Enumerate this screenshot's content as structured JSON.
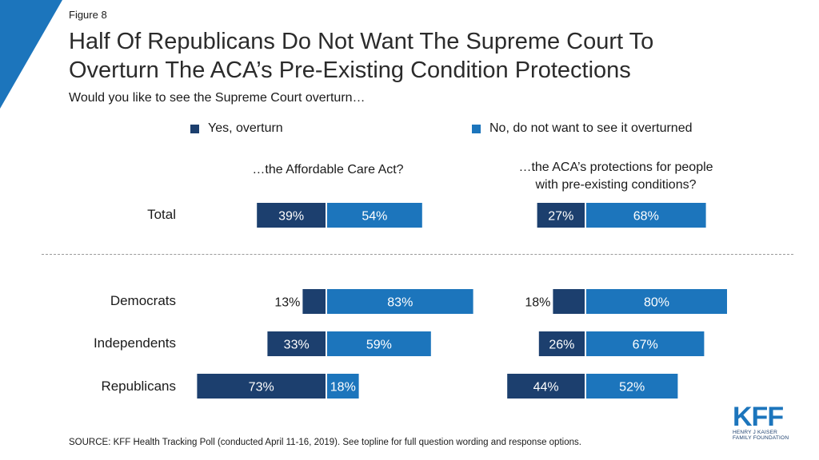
{
  "figure_label": "Figure 8",
  "title_lines": [
    "Half Of Republicans Do Not Want The Supreme Court To",
    "Overturn The ACA’s Pre-Existing Condition Protections"
  ],
  "subtitle": "Would you like to see the Supreme Court overturn…",
  "source": "SOURCE: KFF Health Tracking Poll (conducted April 11-16, 2019). See topline for full question wording and response options.",
  "logo": {
    "mark": "KFF",
    "line1": "HENRY J KAISER",
    "line2": "FAMILY FOUNDATION"
  },
  "colors": {
    "yes": "#1c3f6e",
    "no": "#1c75bc",
    "corner": "#1c75bc"
  },
  "chart_data": {
    "type": "bar",
    "orientation": "horizontal-diverging",
    "categories": [
      "Total",
      "Democrats",
      "Independents",
      "Republicans"
    ],
    "legend": [
      {
        "key": "yes",
        "label": "Yes, overturn"
      },
      {
        "key": "no",
        "label": "No, do not want to see it overturned"
      }
    ],
    "panels": [
      {
        "title": "…the Affordable Care Act?",
        "series": [
          {
            "name": "Yes, overturn",
            "values": [
              39,
              13,
              33,
              73
            ],
            "labels": [
              "39%",
              "13%",
              "33%",
              "73%"
            ]
          },
          {
            "name": "No, do not want to see it overturned",
            "values": [
              54,
              83,
              59,
              18
            ],
            "labels": [
              "54%",
              "83%",
              "59%",
              "18%"
            ]
          }
        ]
      },
      {
        "title_lines": [
          "…the ACA’s protections for people",
          "with pre-existing conditions?"
        ],
        "series": [
          {
            "name": "Yes, overturn",
            "values": [
              27,
              18,
              26,
              44
            ],
            "labels": [
              "27%",
              "18%",
              "26%",
              "44%"
            ]
          },
          {
            "name": "No, do not want to see it overturned",
            "values": [
              68,
              80,
              67,
              52
            ],
            "labels": [
              "68%",
              "80%",
              "67%",
              "52%"
            ]
          }
        ]
      }
    ]
  }
}
